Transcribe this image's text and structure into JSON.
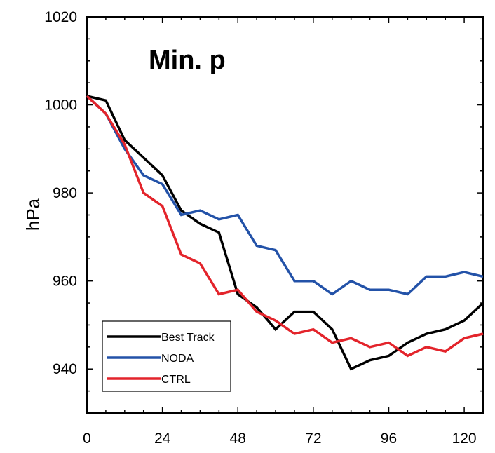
{
  "chart_data": {
    "type": "line",
    "title": "Min. p",
    "xlabel": "",
    "ylabel": "hPa",
    "xlim": [
      0,
      126
    ],
    "ylim": [
      930,
      1020
    ],
    "xticks": [
      0,
      24,
      48,
      72,
      96,
      120
    ],
    "yticks": [
      940,
      960,
      980,
      1000,
      1020
    ],
    "grid": false,
    "legend_position": "bottom-left",
    "x": [
      0,
      6,
      12,
      18,
      24,
      30,
      36,
      42,
      48,
      54,
      60,
      66,
      72,
      78,
      84,
      90,
      96,
      102,
      108,
      114,
      120,
      126
    ],
    "series": [
      {
        "name": "Best Track",
        "color": "#000000",
        "values": [
          1002,
          1001,
          992,
          988,
          984,
          976,
          973,
          971,
          957,
          954,
          949,
          953,
          953,
          949,
          940,
          942,
          943,
          946,
          948,
          949,
          951,
          955
        ]
      },
      {
        "name": "NODA",
        "color": "#2352a8",
        "values": [
          1002,
          998,
          990,
          984,
          982,
          975,
          976,
          974,
          975,
          968,
          967,
          960,
          960,
          957,
          960,
          958,
          958,
          957,
          961,
          961,
          962,
          961
        ]
      },
      {
        "name": "CTRL",
        "color": "#e3242b",
        "values": [
          1002,
          998,
          991,
          980,
          977,
          966,
          964,
          957,
          958,
          953,
          951,
          948,
          949,
          946,
          947,
          945,
          946,
          943,
          945,
          944,
          947,
          948
        ]
      }
    ]
  }
}
